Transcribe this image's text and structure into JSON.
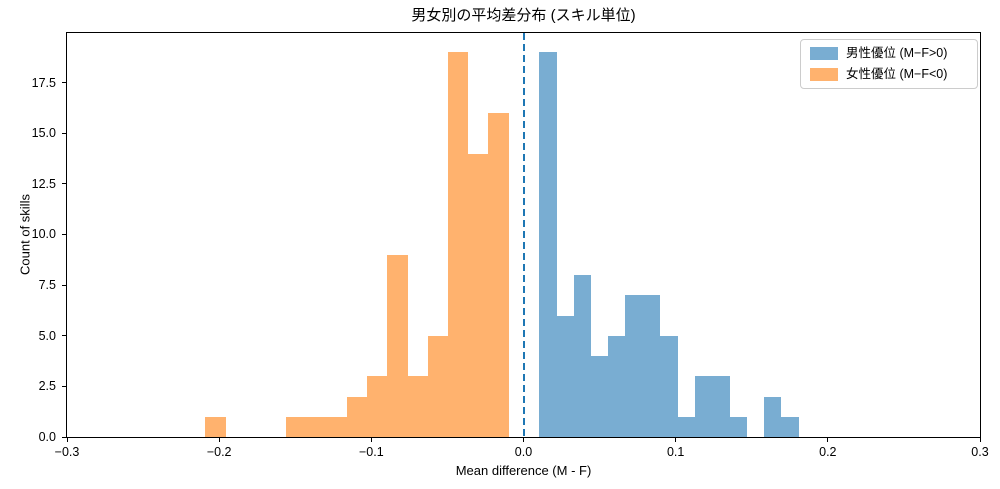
{
  "title": "男女別の平均差分布 (スキル単位)",
  "axes": {
    "xlabel": "Mean difference (M - F)",
    "ylabel": "Count of skills",
    "xlim": [
      -0.3,
      0.3
    ],
    "ylim": [
      0,
      19.95
    ],
    "x_ticks": [
      {
        "value": -0.3,
        "label": "−0.3"
      },
      {
        "value": -0.2,
        "label": "−0.2"
      },
      {
        "value": -0.1,
        "label": "−0.1"
      },
      {
        "value": 0.0,
        "label": "0.0"
      },
      {
        "value": 0.1,
        "label": "0.1"
      },
      {
        "value": 0.2,
        "label": "0.2"
      },
      {
        "value": 0.3,
        "label": "0.3"
      }
    ],
    "y_ticks": [
      {
        "value": 0.0,
        "label": "0.0"
      },
      {
        "value": 2.5,
        "label": "2.5"
      },
      {
        "value": 5.0,
        "label": "5.0"
      },
      {
        "value": 7.5,
        "label": "7.5"
      },
      {
        "value": 10.0,
        "label": "10.0"
      },
      {
        "value": 12.5,
        "label": "12.5"
      },
      {
        "value": 15.0,
        "label": "15.0"
      },
      {
        "value": 17.5,
        "label": "17.5"
      }
    ]
  },
  "legend": {
    "items": [
      {
        "label": "男性優位 (M−F>0)",
        "color": "#79add2"
      },
      {
        "label": "女性優位 (M−F<0)",
        "color": "#ffb26e"
      }
    ]
  },
  "chart_data": {
    "type": "bar",
    "subtype": "histogram",
    "title": "男女別の平均差分布 (スキル単位)",
    "xlabel": "Mean difference (M - F)",
    "ylabel": "Count of skills",
    "xlim": [
      -0.3,
      0.3
    ],
    "ylim": [
      0,
      19.95
    ],
    "grid": false,
    "legend_position": "upper right",
    "series": [
      {
        "name": "男性優位 (M−F>0)",
        "color": "#79add2",
        "base_color": "#1f77b4",
        "alpha": 0.6,
        "bin_start": 0.0102,
        "bin_width": 0.01136,
        "counts": [
          19,
          6,
          8,
          4,
          5,
          7,
          7,
          5,
          1,
          3,
          3,
          1,
          0,
          2,
          1
        ]
      },
      {
        "name": "女性優位 (M−F<0)",
        "color": "#ffb26e",
        "base_color": "#ff7f0e",
        "alpha": 0.6,
        "bin_start": -0.2093,
        "bin_width": 0.0133,
        "counts": [
          1,
          0,
          0,
          0,
          1,
          1,
          1,
          2,
          3,
          9,
          3,
          5,
          19,
          14,
          16
        ]
      }
    ],
    "reference_line": {
      "x": 0.0,
      "color": "#1f77b4",
      "linestyle": "dashed",
      "orientation": "vertical"
    }
  }
}
